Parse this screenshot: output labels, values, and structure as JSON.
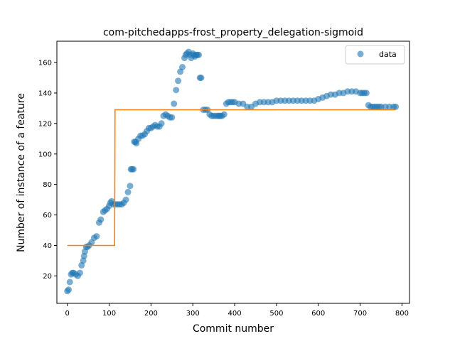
{
  "chart_data": {
    "type": "scatter",
    "title": "com-pitchedapps-frost_property_delegation-sigmoid",
    "xlabel": "Commit number",
    "ylabel": "Number of instance of a feature",
    "xlim": [
      -25,
      818
    ],
    "ylim": [
      2,
      174
    ],
    "xticks": [
      0,
      100,
      200,
      300,
      400,
      500,
      600,
      700,
      800
    ],
    "yticks": [
      20,
      40,
      60,
      80,
      100,
      120,
      140,
      160
    ],
    "legend": {
      "position": "top-right",
      "entries": [
        "data"
      ]
    },
    "grid": false,
    "colors": {
      "data": "#1f77b4",
      "fit": "#ff7f0e"
    },
    "series": [
      {
        "name": "data",
        "kind": "scatter",
        "x": [
          0,
          3,
          6,
          9,
          12,
          15,
          20,
          25,
          30,
          34,
          38,
          40,
          42,
          45,
          48,
          52,
          58,
          64,
          70,
          76,
          80,
          86,
          90,
          95,
          100,
          103,
          106,
          110,
          115,
          120,
          125,
          130,
          135,
          140,
          145,
          150,
          152,
          155,
          158,
          160,
          163,
          165,
          170,
          175,
          180,
          185,
          190,
          195,
          200,
          205,
          210,
          215,
          220,
          225,
          230,
          235,
          240,
          245,
          250,
          255,
          260,
          265,
          270,
          275,
          280,
          283,
          286,
          290,
          293,
          296,
          300,
          302,
          305,
          308,
          311,
          314,
          317,
          320,
          325,
          330,
          335,
          340,
          345,
          350,
          355,
          360,
          363,
          366,
          370,
          375,
          380,
          385,
          390,
          395,
          400,
          410,
          420,
          430,
          440,
          450,
          460,
          470,
          480,
          490,
          500,
          510,
          520,
          530,
          540,
          550,
          560,
          570,
          580,
          590,
          600,
          610,
          620,
          630,
          640,
          650,
          660,
          670,
          680,
          690,
          700,
          705,
          710,
          715,
          720,
          725,
          730,
          735,
          740,
          745,
          750,
          760,
          770,
          780,
          785
        ],
        "y": [
          10,
          11,
          16,
          21,
          22,
          22,
          21,
          20,
          22,
          27,
          30,
          33,
          36,
          39,
          39,
          40,
          42,
          45,
          46,
          55,
          57,
          62,
          63,
          64,
          66,
          68,
          69,
          67,
          67,
          67,
          67,
          67,
          68,
          70,
          75,
          79,
          90,
          90,
          90,
          108,
          108,
          107,
          110,
          112,
          112,
          113,
          115,
          117,
          117,
          118,
          119,
          118,
          118,
          120,
          125,
          126,
          125,
          124,
          124,
          133,
          142,
          148,
          154,
          157,
          163,
          165,
          166,
          167,
          165,
          163,
          166,
          165,
          164,
          165,
          165,
          165,
          150,
          150,
          129,
          129,
          129,
          126,
          125,
          125,
          125,
          125,
          125,
          125,
          125,
          126,
          133,
          134,
          134,
          134,
          134,
          133,
          133,
          131,
          131,
          133,
          134,
          134,
          134,
          134,
          135,
          135,
          135,
          135,
          135,
          135,
          135,
          135,
          135,
          135,
          136,
          137,
          138,
          139,
          139,
          140,
          140,
          141,
          141,
          141,
          140,
          140,
          140,
          140,
          132,
          131,
          131,
          131,
          131,
          131,
          131,
          131,
          131,
          131,
          131
        ]
      },
      {
        "name": "",
        "kind": "line",
        "x": [
          0,
          113,
          114,
          785
        ],
        "y": [
          40,
          40,
          129,
          129
        ]
      }
    ]
  }
}
